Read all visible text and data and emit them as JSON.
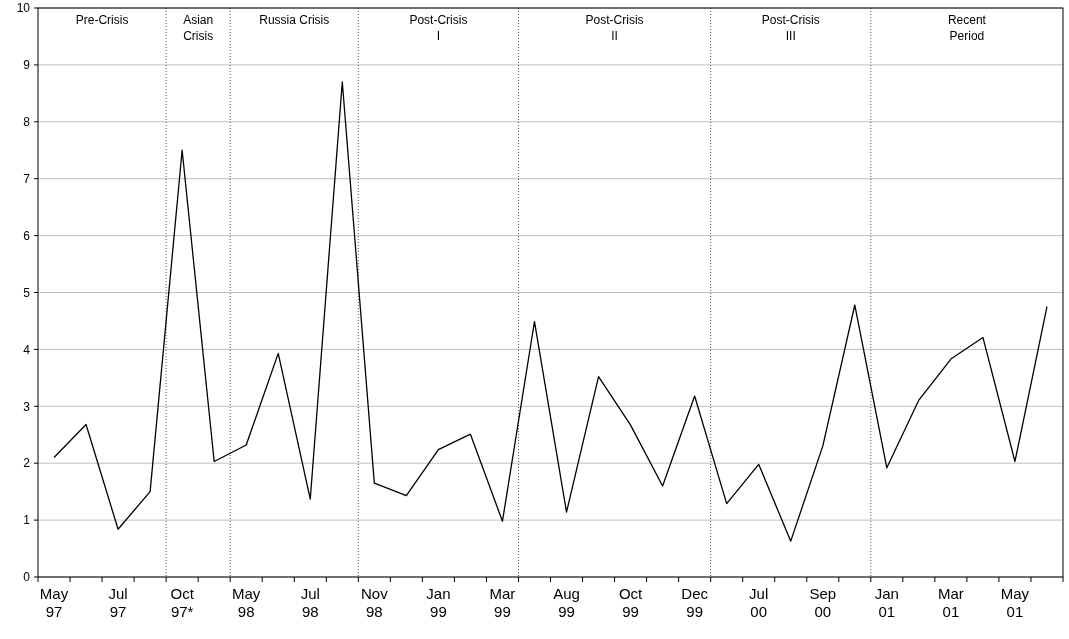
{
  "chart_data": {
    "type": "line",
    "categories": [
      "May 97",
      null,
      "Jul 97",
      null,
      "Oct 97*",
      null,
      "May 98",
      null,
      "Jul 98",
      null,
      "Nov 98",
      null,
      "Jan 99",
      null,
      "Mar 99",
      null,
      "Aug 99",
      null,
      "Oct 99",
      null,
      "Dec 99",
      null,
      "Jul 00",
      null,
      "Sep 00",
      null,
      "Jan 01",
      null,
      "Mar 01",
      null,
      "May 01",
      null
    ],
    "series": [
      {
        "color": "#000000",
        "values": [
          2.1,
          2.68,
          0.84,
          1.5,
          7.5,
          2.03,
          2.32,
          3.93,
          1.37,
          8.7,
          1.65,
          1.43,
          2.24,
          2.51,
          0.98,
          4.49,
          1.14,
          3.52,
          2.67,
          1.6,
          3.18,
          1.29,
          1.98,
          0.63,
          2.3,
          4.78,
          1.92,
          3.11,
          3.83,
          4.21,
          2.03,
          4.75
        ]
      }
    ],
    "ylim": [
      0,
      10
    ],
    "yticks": [
      0,
      1,
      2,
      3,
      4,
      5,
      6,
      7,
      8,
      9,
      10
    ],
    "grid": "y",
    "marker": "none",
    "line_style": "solid",
    "annotations": [
      "Pre-Crisis",
      "Asian\nCrisis",
      "Russia Crisis",
      "Post-Crisis\nI",
      "Post-Crisis\nII",
      "Post-Crisis\nIII",
      "Recent\nPeriod"
    ]
  }
}
